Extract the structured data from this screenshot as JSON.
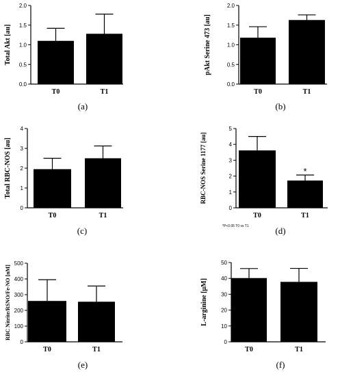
{
  "chart_data": [
    {
      "type": "bar",
      "panel_label": "(a)",
      "ylabel": "Total Akt [au]",
      "categories": [
        "T0",
        "T1"
      ],
      "values": [
        1.1,
        1.28
      ],
      "errors": [
        0.32,
        0.5
      ],
      "ylim": [
        0,
        2.0
      ],
      "yticks": [
        "0.0",
        "0.5",
        "1.0",
        "1.5",
        "2.0"
      ],
      "annotation": "",
      "note": ""
    },
    {
      "type": "bar",
      "panel_label": "(b)",
      "ylabel": "pAkt Serine 473 [au]",
      "categories": [
        "T0",
        "T1"
      ],
      "values": [
        1.18,
        1.63
      ],
      "errors": [
        0.28,
        0.13
      ],
      "ylim": [
        0,
        2.0
      ],
      "yticks": [
        "0.0",
        "0.5",
        "1.0",
        "1.5",
        "2.0"
      ],
      "annotation": "",
      "note": ""
    },
    {
      "type": "bar",
      "panel_label": "(c)",
      "ylabel": "Total RBC-NOS [au]",
      "categories": [
        "T0",
        "T1"
      ],
      "values": [
        1.95,
        2.5
      ],
      "errors": [
        0.55,
        0.62
      ],
      "ylim": [
        0,
        4
      ],
      "yticks": [
        "0",
        "1",
        "2",
        "3",
        "4"
      ],
      "annotation": "",
      "note": ""
    },
    {
      "type": "bar",
      "panel_label": "(d)",
      "ylabel": "RBC-NOS Serine 1177 [au]",
      "categories": [
        "T0",
        "T1"
      ],
      "values": [
        3.62,
        1.72
      ],
      "errors": [
        0.88,
        0.35
      ],
      "ylim": [
        0,
        5
      ],
      "yticks": [
        "0",
        "1",
        "2",
        "3",
        "4",
        "5"
      ],
      "annotation": "*",
      "note": "*P<0.05 T0 vs T1"
    },
    {
      "type": "bar",
      "panel_label": "(e)",
      "ylabel": "RBC Nitrite/RSNO/Fe-NO [nM]",
      "categories": [
        "T0",
        "T1"
      ],
      "values": [
        260,
        255
      ],
      "errors": [
        135,
        100
      ],
      "ylim": [
        0,
        500
      ],
      "yticks": [
        "0",
        "100",
        "200",
        "300",
        "400",
        "500"
      ],
      "annotation": "",
      "note": ""
    },
    {
      "type": "bar",
      "panel_label": "(f)",
      "ylabel": "L-arginine [µM]",
      "categories": [
        "T0",
        "T1"
      ],
      "values": [
        40.2,
        37.8
      ],
      "errors": [
        6.0,
        8.5
      ],
      "ylim": [
        0,
        50
      ],
      "yticks": [
        "0",
        "10",
        "20",
        "30",
        "40",
        "50"
      ],
      "annotation": "",
      "note": ""
    }
  ]
}
